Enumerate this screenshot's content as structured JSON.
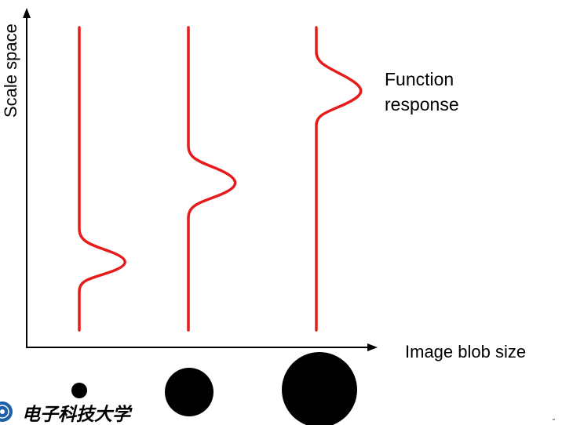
{
  "axes": {
    "y_label": "Scale space",
    "x_label": "Image blob size"
  },
  "annotation": {
    "line1": "Function",
    "line2": "response"
  },
  "curves": {
    "color": "#e51c1c",
    "items": [
      {
        "name": "small-blob-response",
        "peak_level": 0.25
      },
      {
        "name": "medium-blob-response",
        "peak_level": 0.48
      },
      {
        "name": "large-blob-response",
        "peak_level": 0.82
      }
    ]
  },
  "blobs": [
    {
      "name": "small-blob",
      "relative_size": 1
    },
    {
      "name": "medium-blob",
      "relative_size": 3
    },
    {
      "name": "large-blob",
      "relative_size": 5
    }
  ],
  "footer": {
    "logo_text": "电子科技大学",
    "logo_icon": "university-emblem-icon"
  }
}
